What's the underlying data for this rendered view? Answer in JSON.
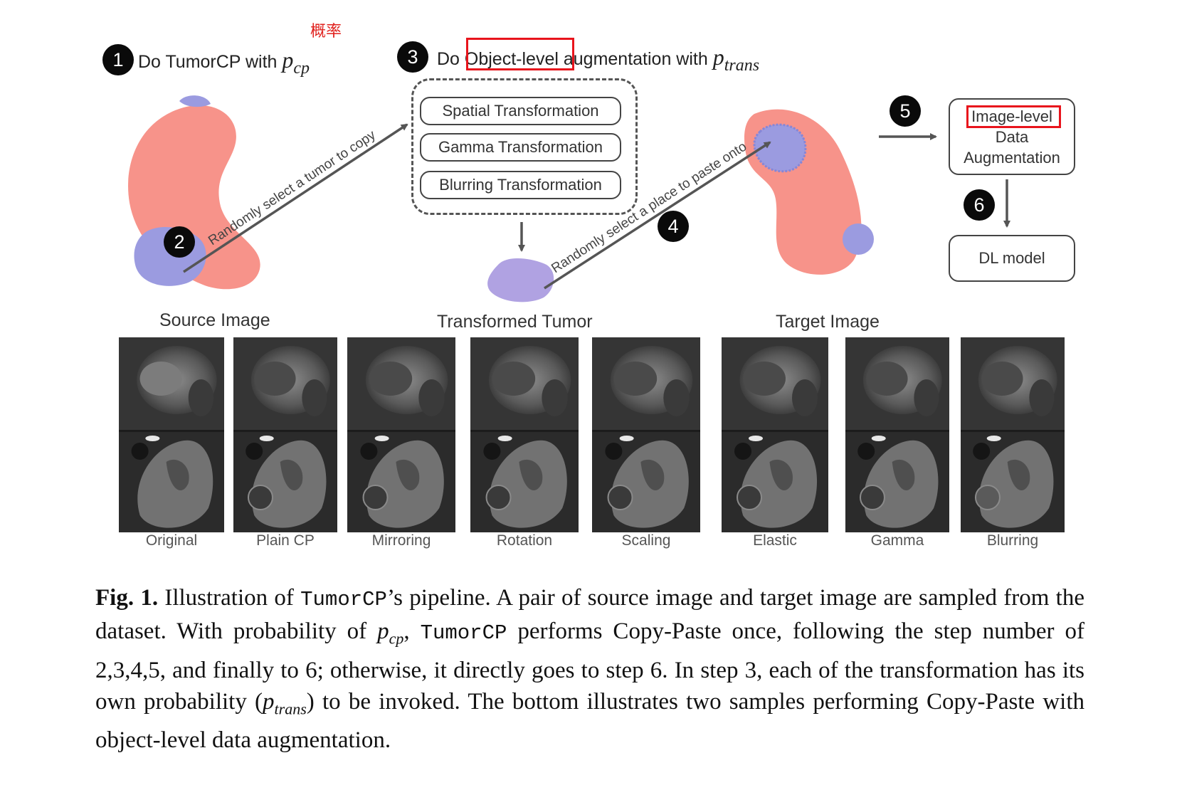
{
  "diagram": {
    "annotation_cn": "概率",
    "step1": {
      "badge": "1",
      "text": "Do TumorCP with",
      "math": "p",
      "math_sub": "cp"
    },
    "step3": {
      "badge": "3",
      "text_before": "Do ",
      "highlight": "Object-level",
      "text_after": " augmentation with",
      "math": "p",
      "math_sub": "trans"
    },
    "badges": {
      "two": "2",
      "four": "4",
      "five": "5",
      "six": "6"
    },
    "arrow2_label": "Randomly select a tumor to copy",
    "arrow4_label": "Randomly select a place to paste onto",
    "transformations": [
      "Spatial Transformation",
      "Gamma Transformation",
      "Blurring Transformation"
    ],
    "image_level_box": {
      "highlight": "Image-level",
      "line2": "Data",
      "line3": "Augmentation"
    },
    "dl_model_box": "DL model",
    "section_labels": {
      "source": "Source Image",
      "transformed": "Transformed Tumor",
      "target": "Target Image"
    },
    "colors": {
      "kidney": "#f7938a",
      "tumor": "#9b9be0",
      "transformed_tumor": "#b0a2e2",
      "highlight": "#e8141c",
      "badge": "#0a0a0a"
    }
  },
  "thumbnails": [
    "Original",
    "Plain CP",
    "Mirroring",
    "Rotation",
    "Scaling",
    "Elastic",
    "Gamma",
    "Blurring"
  ],
  "caption": {
    "fig_label": "Fig. 1.",
    "seg1": " Illustration of ",
    "tumorcp1": "TumorCP",
    "seg2": "’s pipeline. A pair of source image and target image are sampled from the dataset. With probability of ",
    "p1": "p",
    "p1_sub": "cp",
    "seg3": ", ",
    "tumorcp2": "TumorCP",
    "seg4": " performs Copy-Paste once, following the step number of 2,3,4,5, and finally to 6; otherwise, it directly goes to step 6. In step 3, each of the transformation has its own probability (",
    "p2": "p",
    "p2_sub": "trans",
    "seg5": ") to be invoked. The bottom illustrates two samples performing Copy-Paste with object-level data augmentation."
  }
}
